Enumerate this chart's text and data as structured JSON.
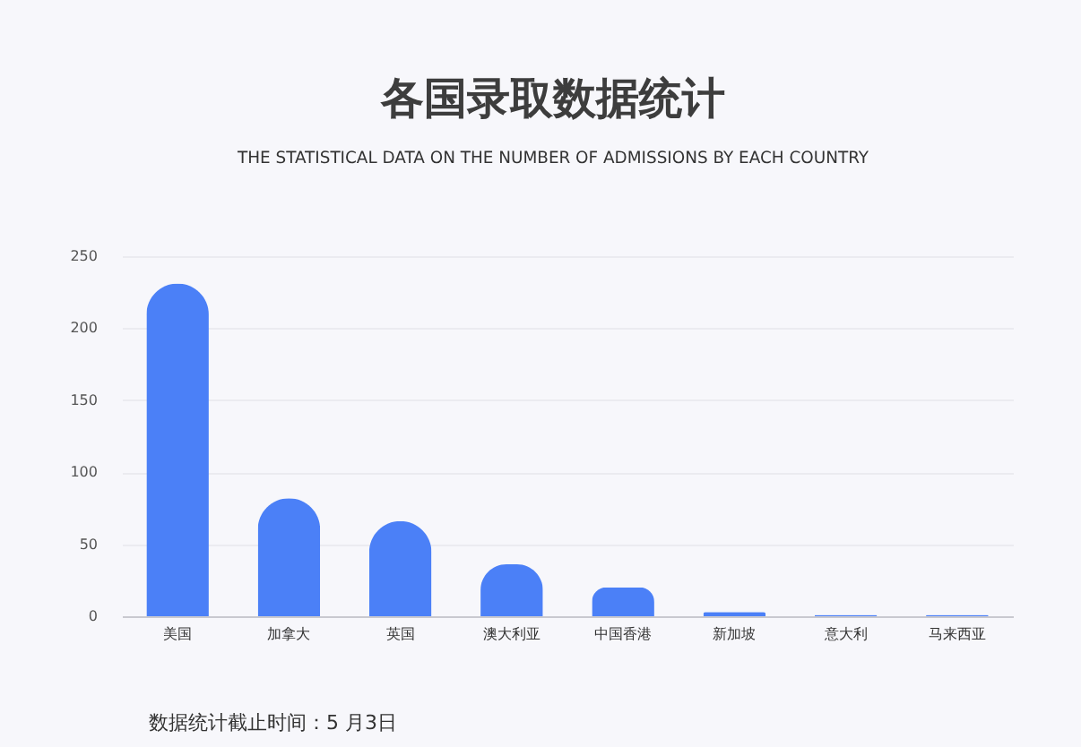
{
  "chart_data": {
    "type": "bar",
    "title": "各国录取数据统计",
    "subtitle": "THE STATISTICAL DATA ON THE NUMBER OF ADMISSIONS BY EACH COUNTRY",
    "categories": [
      "美国",
      "加拿大",
      "英国",
      "澳大利亚",
      "中国香港",
      "新加坡",
      "意大利",
      "马来西亚"
    ],
    "values": [
      231,
      82,
      66,
      36,
      20,
      3,
      1,
      1
    ],
    "color": "#4b80f7",
    "ylim": [
      0,
      250
    ],
    "yticks": [
      0,
      50,
      100,
      150,
      200,
      250
    ],
    "grid": "y",
    "annotations": [
      "数据统计截止时间：5 月3日"
    ]
  }
}
